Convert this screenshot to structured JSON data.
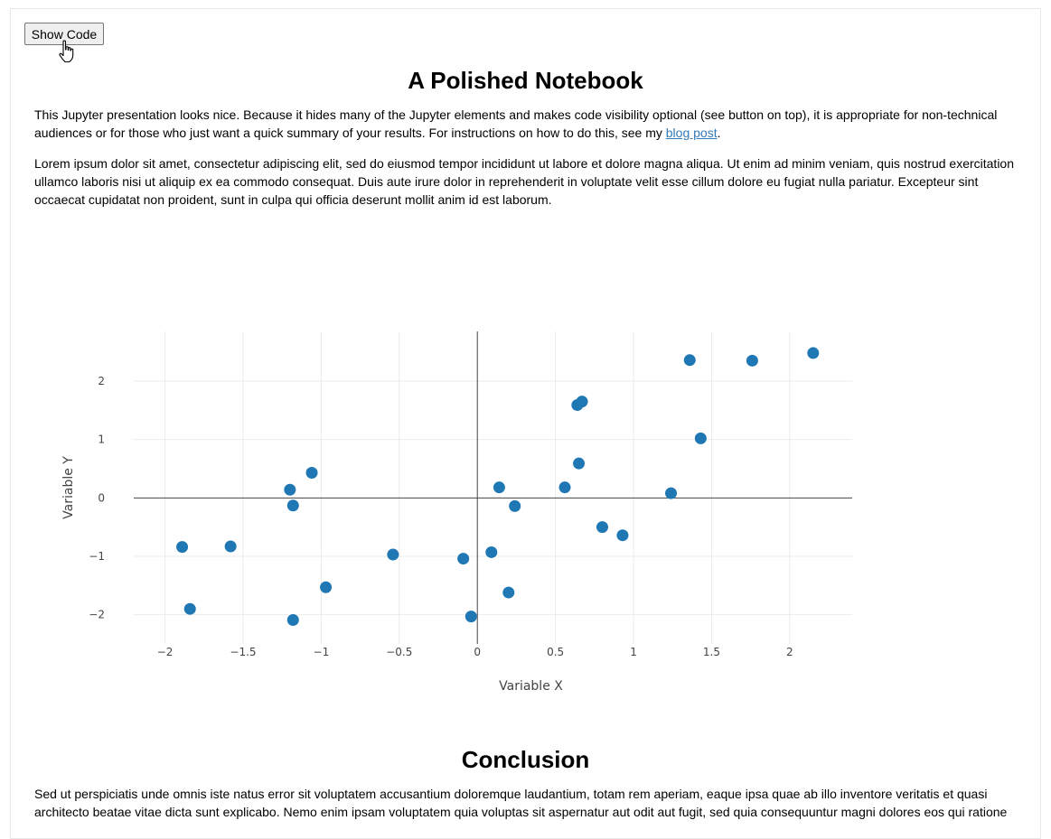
{
  "toolbar": {
    "show_code_label": "Show Code"
  },
  "header": {
    "title": "A Polished Notebook"
  },
  "intro": {
    "text_before_link": "This Jupyter presentation looks nice. Because it hides many of the Jupyter elements and makes code visibility optional (see button on top), it is appropriate for non-technical audiences or for those who just want a quick summary of your results. For instructions on how to do this, see my ",
    "link_text": "blog post",
    "text_after_link": "."
  },
  "lorem": {
    "text": "Lorem ipsum dolor sit amet, consectetur adipiscing elit, sed do eiusmod tempor incididunt ut labore et dolore magna aliqua. Ut enim ad minim veniam, quis nostrud exercitation ullamco laboris nisi ut aliquip ex ea commodo consequat. Duis aute irure dolor in reprehenderit in voluptate velit esse cillum dolore eu fugiat nulla pariatur. Excepteur sint occaecat cupidatat non proident, sunt in culpa qui officia deserunt mollit anim id est laborum."
  },
  "chart_data": {
    "type": "scatter",
    "title": "",
    "xlabel": "Variable X",
    "ylabel": "Variable Y",
    "xlim": [
      -2.2,
      2.4
    ],
    "ylim": [
      -2.5,
      2.85
    ],
    "xticks": [
      -2,
      -1.5,
      -1,
      -0.5,
      0,
      0.5,
      1,
      1.5,
      2
    ],
    "yticks": [
      -2,
      -1,
      0,
      1,
      2
    ],
    "xtick_labels": [
      "−2",
      "−1.5",
      "−1",
      "−0.5",
      "0",
      "0.5",
      "1",
      "1.5",
      "2"
    ],
    "ytick_labels": [
      "−2",
      "−1",
      "0",
      "1",
      "2"
    ],
    "grid": true,
    "marker_color": "#1f77b4",
    "points": [
      {
        "x": 2.15,
        "y": 2.48
      },
      {
        "x": 1.36,
        "y": 2.36
      },
      {
        "x": 1.76,
        "y": 2.35
      },
      {
        "x": 0.67,
        "y": 1.65
      },
      {
        "x": 0.64,
        "y": 1.59
      },
      {
        "x": 1.43,
        "y": 1.02
      },
      {
        "x": 0.65,
        "y": 0.59
      },
      {
        "x": -1.06,
        "y": 0.43
      },
      {
        "x": -1.2,
        "y": 0.14
      },
      {
        "x": 0.14,
        "y": 0.18
      },
      {
        "x": 0.56,
        "y": 0.18
      },
      {
        "x": 1.24,
        "y": 0.08
      },
      {
        "x": -1.18,
        "y": -0.13
      },
      {
        "x": 0.24,
        "y": -0.14
      },
      {
        "x": 0.8,
        "y": -0.5
      },
      {
        "x": 0.93,
        "y": -0.64
      },
      {
        "x": -1.89,
        "y": -0.84
      },
      {
        "x": -1.58,
        "y": -0.83
      },
      {
        "x": 0.09,
        "y": -0.93
      },
      {
        "x": -0.54,
        "y": -0.97
      },
      {
        "x": -0.09,
        "y": -1.04
      },
      {
        "x": -0.97,
        "y": -1.53
      },
      {
        "x": 0.2,
        "y": -1.62
      },
      {
        "x": -1.84,
        "y": -1.9
      },
      {
        "x": -1.18,
        "y": -2.09
      },
      {
        "x": -0.04,
        "y": -2.03
      }
    ]
  },
  "conclusion": {
    "title": "Conclusion",
    "text": "Sed ut perspiciatis unde omnis iste natus error sit voluptatem accusantium doloremque laudantium, totam rem aperiam, eaque ipsa quae ab illo inventore veritatis et quasi architecto beatae vitae dicta sunt explicabo. Nemo enim ipsam voluptatem quia voluptas sit aspernatur aut odit aut fugit, sed quia consequuntur magni dolores eos qui ratione"
  }
}
